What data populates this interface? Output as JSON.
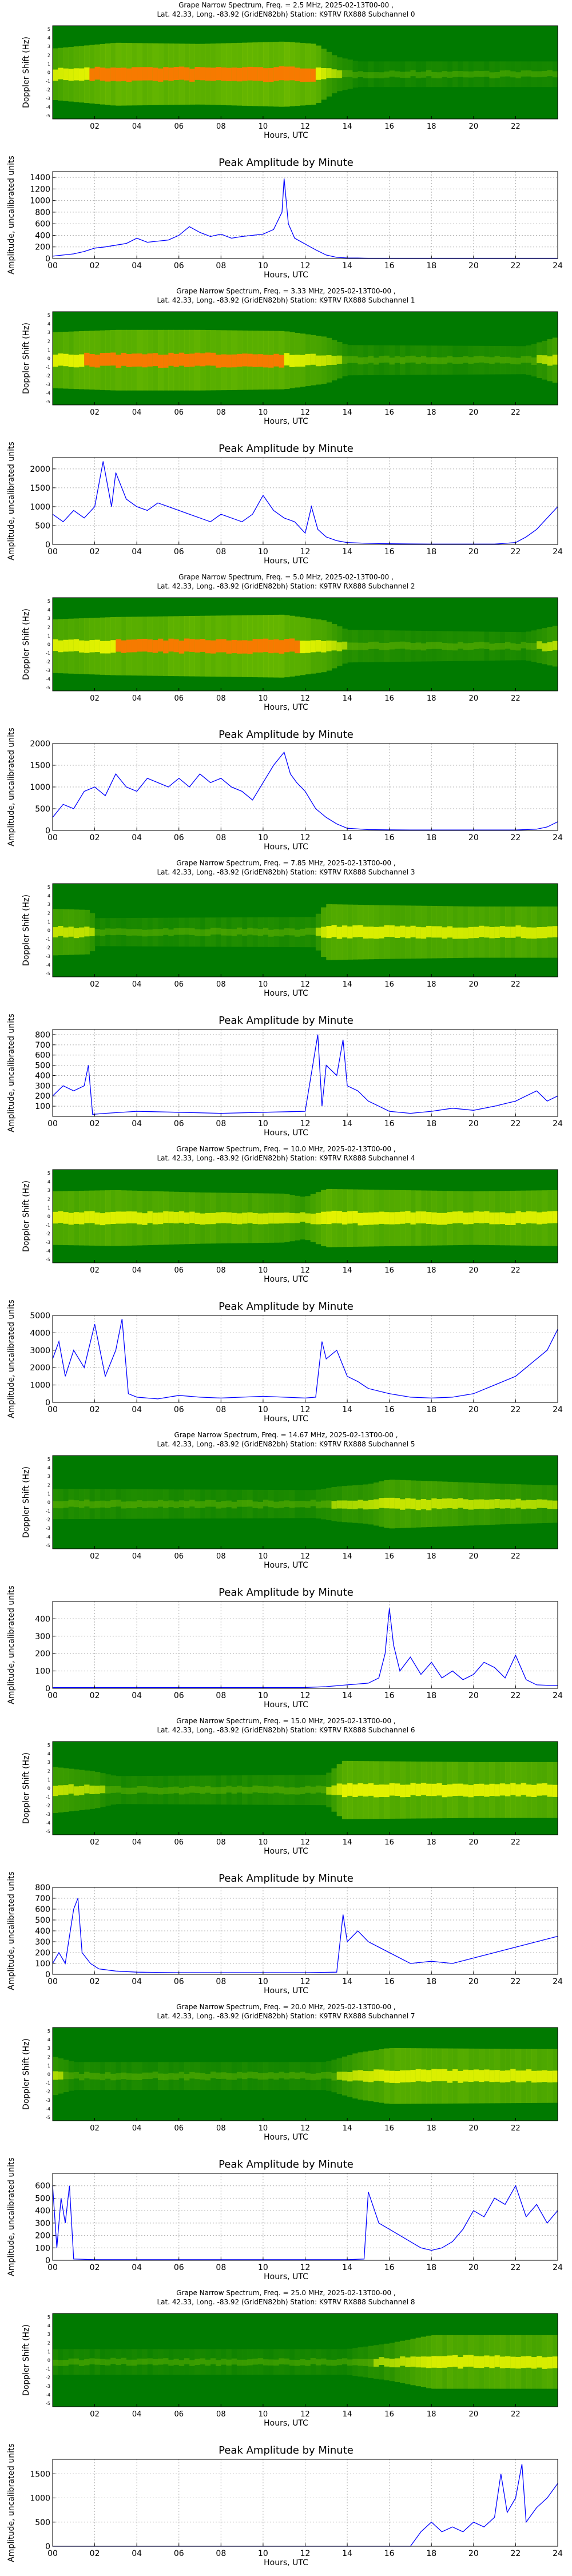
{
  "common": {
    "spec_ylabel": "Doppler Shift (Hz)",
    "spec_xticks": [
      "02",
      "04",
      "06",
      "08",
      "10",
      "12",
      "14",
      "16",
      "18",
      "20",
      "22"
    ],
    "spec_yticks": [
      "-5",
      "-4",
      "-3",
      "-2",
      "-1",
      "0",
      "1",
      "2",
      "3",
      "4",
      "5"
    ],
    "spec_xlabel": "Hours, UTC",
    "amp_title": "Peak Amplitude by Minute",
    "amp_ylabel": "Amplitude, uncalibrated units",
    "amp_xlabel": "Hours, UTC",
    "amp_xticks": [
      "00",
      "02",
      "04",
      "06",
      "08",
      "10",
      "12",
      "14",
      "16",
      "18",
      "20",
      "22",
      "24"
    ]
  },
  "colors": {
    "line": "#0000ff",
    "spec_bg": "#007a00",
    "spec_mid": "#7cc400",
    "spec_hi": "#ffff00",
    "spec_peak": "#ff7700"
  },
  "chart_data": [
    {
      "type": "heatmap",
      "title_line1": "Grape Narrow Spectrum, Freq. = 2.5 MHz, 2025-02-13T00-00 ,",
      "title_line2": "Lat. 42.33, Long. -83.92 (GridEN82bh) Station: K9TRV RX888 Subchannel 0",
      "activity": [
        [
          0.0,
          0.7
        ],
        [
          3.0,
          0.95
        ],
        [
          7.0,
          0.9
        ],
        [
          11.0,
          1.0
        ],
        [
          12.5,
          0.9
        ],
        [
          13.5,
          0.35
        ],
        [
          14.5,
          0.15
        ],
        [
          24.0,
          0.15
        ]
      ]
    },
    {
      "type": "line",
      "title": "Peak Amplitude by Minute",
      "ylim": [
        0,
        1500
      ],
      "yticks": [
        0,
        200,
        400,
        600,
        800,
        1000,
        1200,
        1400
      ],
      "x": [
        0,
        0.5,
        1,
        1.5,
        2,
        2.5,
        3,
        3.5,
        4,
        4.5,
        5,
        5.5,
        6,
        6.5,
        7,
        7.5,
        8,
        8.5,
        9,
        9.5,
        10,
        10.5,
        10.9,
        11.0,
        11.2,
        11.5,
        12,
        12.5,
        13,
        13.5,
        14,
        14.5,
        15,
        16,
        17,
        18,
        19,
        20,
        21,
        22,
        23,
        24
      ],
      "y": [
        40,
        60,
        80,
        120,
        180,
        200,
        230,
        260,
        350,
        280,
        300,
        320,
        400,
        550,
        450,
        380,
        420,
        350,
        380,
        400,
        420,
        500,
        800,
        1380,
        600,
        350,
        250,
        150,
        60,
        20,
        10,
        8,
        5,
        5,
        5,
        5,
        5,
        5,
        5,
        5,
        5,
        5
      ]
    },
    {
      "type": "heatmap",
      "title_line1": "Grape Narrow Spectrum, Freq. = 3.33 MHz, 2025-02-13T00-00 ,",
      "title_line2": "Lat. 42.33, Long. -83.92 (GridEN82bh) Station: K9TRV RX888 Subchannel 1",
      "activity": [
        [
          0.0,
          0.8
        ],
        [
          3.0,
          0.9
        ],
        [
          7.0,
          0.9
        ],
        [
          11.0,
          0.85
        ],
        [
          13.0,
          0.6
        ],
        [
          14.0,
          0.25
        ],
        [
          22.5,
          0.2
        ],
        [
          24.0,
          0.6
        ]
      ]
    },
    {
      "type": "line",
      "title": "Peak Amplitude by Minute",
      "ylim": [
        0,
        2300
      ],
      "yticks": [
        0,
        500,
        1000,
        1500,
        2000
      ],
      "x": [
        0,
        0.5,
        1,
        1.5,
        2,
        2.4,
        2.8,
        3.0,
        3.5,
        4,
        4.5,
        5,
        5.5,
        6,
        6.5,
        7,
        7.5,
        8,
        8.5,
        9,
        9.5,
        10,
        10.5,
        11,
        11.5,
        12,
        12.3,
        12.6,
        13,
        13.5,
        14,
        15,
        16,
        17,
        18,
        19,
        20,
        21,
        22,
        22.5,
        23,
        23.5,
        24
      ],
      "y": [
        800,
        600,
        900,
        700,
        1000,
        2200,
        1000,
        1900,
        1200,
        1000,
        900,
        1100,
        1000,
        900,
        800,
        700,
        600,
        800,
        700,
        600,
        800,
        1300,
        900,
        700,
        600,
        300,
        1000,
        400,
        200,
        100,
        50,
        30,
        20,
        15,
        10,
        10,
        10,
        10,
        50,
        200,
        400,
        700,
        1000
      ]
    },
    {
      "type": "heatmap",
      "title_line1": "Grape Narrow Spectrum, Freq. = 5.0 MHz, 2025-02-13T00-00 ,",
      "title_line2": "Lat. 42.33, Long. -83.92 (GridEN82bh) Station: K9TRV RX888 Subchannel 2",
      "activity": [
        [
          0.0,
          0.75
        ],
        [
          3.0,
          0.85
        ],
        [
          7.0,
          0.9
        ],
        [
          11.0,
          0.95
        ],
        [
          13.0,
          0.7
        ],
        [
          14.0,
          0.3
        ],
        [
          22.5,
          0.2
        ],
        [
          24.0,
          0.5
        ]
      ]
    },
    {
      "type": "line",
      "title": "Peak Amplitude by Minute",
      "ylim": [
        0,
        2000
      ],
      "yticks": [
        0,
        500,
        1000,
        1500,
        2000
      ],
      "x": [
        0,
        0.5,
        1,
        1.5,
        2,
        2.5,
        3,
        3.5,
        4,
        4.5,
        5,
        5.5,
        6,
        6.5,
        7,
        7.5,
        8,
        8.5,
        9,
        9.5,
        10,
        10.5,
        11,
        11.3,
        11.6,
        12,
        12.5,
        13,
        13.5,
        14,
        15,
        16,
        17,
        18,
        19,
        20,
        21,
        22,
        23,
        23.5,
        24
      ],
      "y": [
        300,
        600,
        500,
        900,
        1000,
        800,
        1300,
        1000,
        900,
        1200,
        1100,
        1000,
        1200,
        1000,
        1300,
        1100,
        1200,
        1000,
        900,
        700,
        1100,
        1500,
        1800,
        1300,
        1100,
        900,
        500,
        300,
        150,
        50,
        20,
        15,
        10,
        10,
        10,
        10,
        10,
        10,
        30,
        80,
        200
      ]
    },
    {
      "type": "heatmap",
      "title_line1": "Grape Narrow Spectrum, Freq. = 7.85 MHz, 2025-02-13T00-00 ,",
      "title_line2": "Lat. 42.33, Long. -83.92 (GridEN82bh) Station: K9TRV RX888 Subchannel 3",
      "activity": [
        [
          0.0,
          0.6
        ],
        [
          1.8,
          0.55
        ],
        [
          2.0,
          0.2
        ],
        [
          12.5,
          0.25
        ],
        [
          13.0,
          0.8
        ],
        [
          16.0,
          0.75
        ],
        [
          20.0,
          0.7
        ],
        [
          24.0,
          0.7
        ]
      ]
    },
    {
      "type": "line",
      "title": "Peak Amplitude by Minute",
      "ylim": [
        0,
        850
      ],
      "yticks": [
        100,
        200,
        300,
        400,
        500,
        600,
        700,
        800
      ],
      "x": [
        0,
        0.5,
        1,
        1.5,
        1.7,
        1.9,
        2.5,
        4,
        6,
        8,
        10,
        12,
        12.6,
        12.8,
        13,
        13.5,
        13.8,
        14,
        14.5,
        15,
        15.5,
        16,
        17,
        18,
        19,
        20,
        21,
        22,
        22.5,
        23,
        23.5,
        24
      ],
      "y": [
        200,
        300,
        250,
        300,
        500,
        20,
        30,
        50,
        40,
        30,
        40,
        50,
        800,
        100,
        500,
        400,
        750,
        300,
        250,
        150,
        100,
        50,
        30,
        50,
        80,
        60,
        100,
        150,
        200,
        250,
        150,
        200
      ]
    },
    {
      "type": "heatmap",
      "title_line1": "Grape Narrow Spectrum, Freq. = 10.0 MHz, 2025-02-13T00-00 ,",
      "title_line2": "Lat. 42.33, Long. -83.92 (GridEN82bh) Station: K9TRV RX888 Subchannel 4",
      "activity": [
        [
          0.0,
          0.75
        ],
        [
          3.0,
          0.8
        ],
        [
          7.0,
          0.7
        ],
        [
          11.0,
          0.65
        ],
        [
          12.0,
          0.5
        ],
        [
          13.0,
          0.85
        ],
        [
          20.0,
          0.75
        ],
        [
          24.0,
          0.8
        ]
      ]
    },
    {
      "type": "line",
      "title": "Peak Amplitude by Minute",
      "ylim": [
        0,
        5000
      ],
      "yticks": [
        0,
        1000,
        2000,
        3000,
        4000,
        5000
      ],
      "x": [
        0,
        0.3,
        0.6,
        1,
        1.5,
        2,
        2.5,
        3,
        3.3,
        3.6,
        4,
        5,
        6,
        7,
        8,
        9,
        10,
        11,
        12,
        12.5,
        12.8,
        13,
        13.5,
        14,
        14.5,
        15,
        16,
        17,
        18,
        19,
        20,
        21,
        22,
        23,
        23.5,
        24
      ],
      "y": [
        2500,
        3500,
        1500,
        3000,
        2000,
        4500,
        1500,
        3000,
        4800,
        500,
        300,
        200,
        400,
        300,
        250,
        300,
        350,
        300,
        250,
        300,
        3500,
        2500,
        3000,
        1500,
        1200,
        800,
        500,
        300,
        250,
        300,
        500,
        1000,
        1500,
        2500,
        3000,
        4200
      ]
    },
    {
      "type": "heatmap",
      "title_line1": "Grape Narrow Spectrum, Freq. = 14.67 MHz, 2025-02-13T00-00 ,",
      "title_line2": "Lat. 42.33, Long. -83.92 (GridEN82bh) Station: K9TRV RX888 Subchannel 5",
      "activity": [
        [
          0.0,
          0.25
        ],
        [
          12.5,
          0.2
        ],
        [
          13.5,
          0.35
        ],
        [
          15.0,
          0.45
        ],
        [
          16.0,
          0.65
        ],
        [
          19.0,
          0.55
        ],
        [
          22.0,
          0.45
        ],
        [
          24.0,
          0.4
        ]
      ]
    },
    {
      "type": "line",
      "title": "Peak Amplitude by Minute",
      "ylim": [
        0,
        500
      ],
      "yticks": [
        0,
        100,
        200,
        300,
        400
      ],
      "x": [
        0,
        2,
        4,
        6,
        8,
        10,
        12,
        13,
        14,
        15,
        15.5,
        15.8,
        16.0,
        16.2,
        16.5,
        17,
        17.5,
        18,
        18.5,
        19,
        19.5,
        20,
        20.5,
        21,
        21.5,
        22,
        22.5,
        23,
        24
      ],
      "y": [
        5,
        5,
        5,
        5,
        5,
        5,
        5,
        10,
        20,
        30,
        60,
        200,
        460,
        250,
        100,
        180,
        80,
        150,
        60,
        100,
        50,
        80,
        150,
        120,
        60,
        190,
        50,
        20,
        15
      ]
    },
    {
      "type": "heatmap",
      "title_line1": "Grape Narrow Spectrum, Freq. = 15.0 MHz, 2025-02-13T00-00 ,",
      "title_line2": "Lat. 42.33, Long. -83.92 (GridEN82bh) Station: K9TRV RX888 Subchannel 6",
      "activity": [
        [
          0.0,
          0.6
        ],
        [
          2.0,
          0.4
        ],
        [
          3.0,
          0.2
        ],
        [
          13.0,
          0.25
        ],
        [
          13.8,
          0.85
        ],
        [
          20.0,
          0.8
        ],
        [
          24.0,
          0.8
        ]
      ]
    },
    {
      "type": "line",
      "title": "Peak Amplitude by Minute",
      "ylim": [
        0,
        800
      ],
      "yticks": [
        0,
        100,
        200,
        300,
        400,
        500,
        600,
        700,
        800
      ],
      "x": [
        0,
        0.3,
        0.6,
        1.0,
        1.2,
        1.4,
        1.8,
        2.2,
        3,
        4,
        6,
        8,
        10,
        12,
        13.5,
        13.8,
        14,
        14.5,
        15,
        15.5,
        16,
        17,
        18,
        19,
        20,
        21,
        22,
        23,
        24
      ],
      "y": [
        100,
        200,
        100,
        600,
        700,
        200,
        100,
        50,
        30,
        20,
        15,
        15,
        15,
        15,
        20,
        550,
        300,
        400,
        300,
        250,
        200,
        100,
        120,
        100,
        150,
        200,
        250,
        300,
        350
      ]
    },
    {
      "type": "heatmap",
      "title_line1": "Grape Narrow Spectrum, Freq. = 20.0 MHz, 2025-02-13T00-00 ,",
      "title_line2": "Lat. 42.33, Long. -83.92 (GridEN82bh) Station: K9TRV RX888 Subchannel 7",
      "activity": [
        [
          0.0,
          0.45
        ],
        [
          1.0,
          0.2
        ],
        [
          13.0,
          0.2
        ],
        [
          14.5,
          0.6
        ],
        [
          16.0,
          0.8
        ],
        [
          24.0,
          0.75
        ]
      ]
    },
    {
      "type": "line",
      "title": "Peak Amplitude by Minute",
      "ylim": [
        0,
        700
      ],
      "yticks": [
        0,
        100,
        200,
        300,
        400,
        500,
        600
      ],
      "x": [
        0,
        0.2,
        0.4,
        0.6,
        0.8,
        1,
        2,
        4,
        6,
        8,
        10,
        12,
        14,
        14.8,
        15,
        15.5,
        16,
        16.5,
        17,
        17.5,
        18,
        18.5,
        19,
        19.5,
        20,
        20.5,
        21,
        21.5,
        22,
        22.5,
        23,
        23.5,
        24
      ],
      "y": [
        600,
        100,
        500,
        300,
        600,
        10,
        5,
        5,
        5,
        5,
        5,
        5,
        5,
        10,
        550,
        300,
        250,
        200,
        150,
        100,
        80,
        100,
        150,
        250,
        400,
        350,
        500,
        450,
        600,
        350,
        450,
        300,
        400
      ]
    },
    {
      "type": "heatmap",
      "title_line1": "Grape Narrow Spectrum, Freq. = 25.0 MHz, 2025-02-13T00-00 ,",
      "title_line2": "Lat. 42.33, Long. -83.92 (GridEN82bh) Station: K9TRV RX888 Subchannel 8",
      "activity": [
        [
          0.0,
          0.15
        ],
        [
          14.0,
          0.15
        ],
        [
          16.0,
          0.4
        ],
        [
          18.0,
          0.75
        ],
        [
          24.0,
          0.75
        ]
      ]
    },
    {
      "type": "line",
      "title": "Peak Amplitude by Minute",
      "ylim": [
        0,
        1800
      ],
      "yticks": [
        0,
        500,
        1000,
        1500
      ],
      "x": [
        0,
        2,
        4,
        6,
        8,
        10,
        12,
        14,
        16,
        17,
        17.5,
        18,
        18.5,
        19,
        19.5,
        20,
        20.5,
        21,
        21.3,
        21.6,
        22,
        22.3,
        22.5,
        23,
        23.5,
        24
      ],
      "y": [
        0,
        0,
        0,
        0,
        0,
        0,
        0,
        0,
        0,
        0,
        300,
        500,
        300,
        400,
        300,
        500,
        400,
        600,
        1500,
        700,
        1000,
        1700,
        500,
        800,
        1000,
        1300
      ]
    }
  ]
}
